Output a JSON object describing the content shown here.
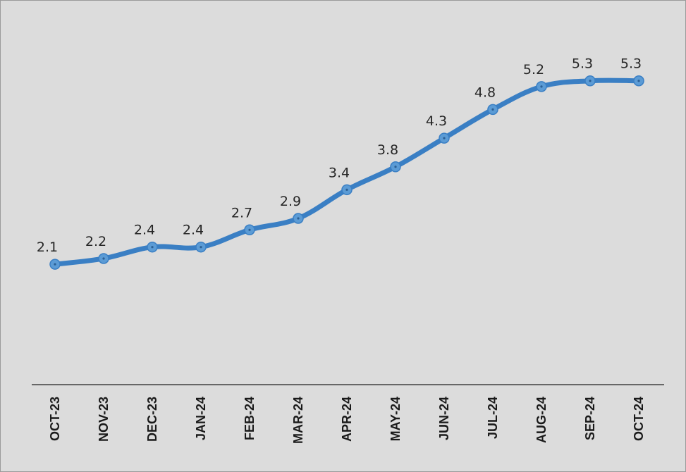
{
  "chart_data": {
    "type": "line",
    "title": "",
    "xlabel": "",
    "ylabel": "",
    "categories": [
      "OCT-23",
      "NOV-23",
      "DEC-23",
      "JAN-24",
      "FEB-24",
      "MAR-24",
      "APR-24",
      "MAY-24",
      "JUN-24",
      "JUL-24",
      "AUG-24",
      "SEP-24",
      "OCT-24"
    ],
    "series": [
      {
        "values": [
          2.1,
          2.2,
          2.4,
          2.4,
          2.7,
          2.9,
          3.4,
          3.8,
          4.3,
          4.8,
          5.2,
          5.3,
          5.3
        ]
      }
    ],
    "data_labels": [
      "2.1",
      "2.2",
      "2.4",
      "2.4",
      "2.7",
      "2.9",
      "3.4",
      "3.8",
      "4.3",
      "4.8",
      "5.2",
      "5.3",
      "5.3"
    ],
    "ylim": [
      0,
      6
    ],
    "grid": false,
    "legend": "none",
    "colors": {
      "line": "#3a7fc4",
      "marker": "#5b9bd5",
      "axis": "#404040",
      "background": "#dcdcdc"
    }
  }
}
